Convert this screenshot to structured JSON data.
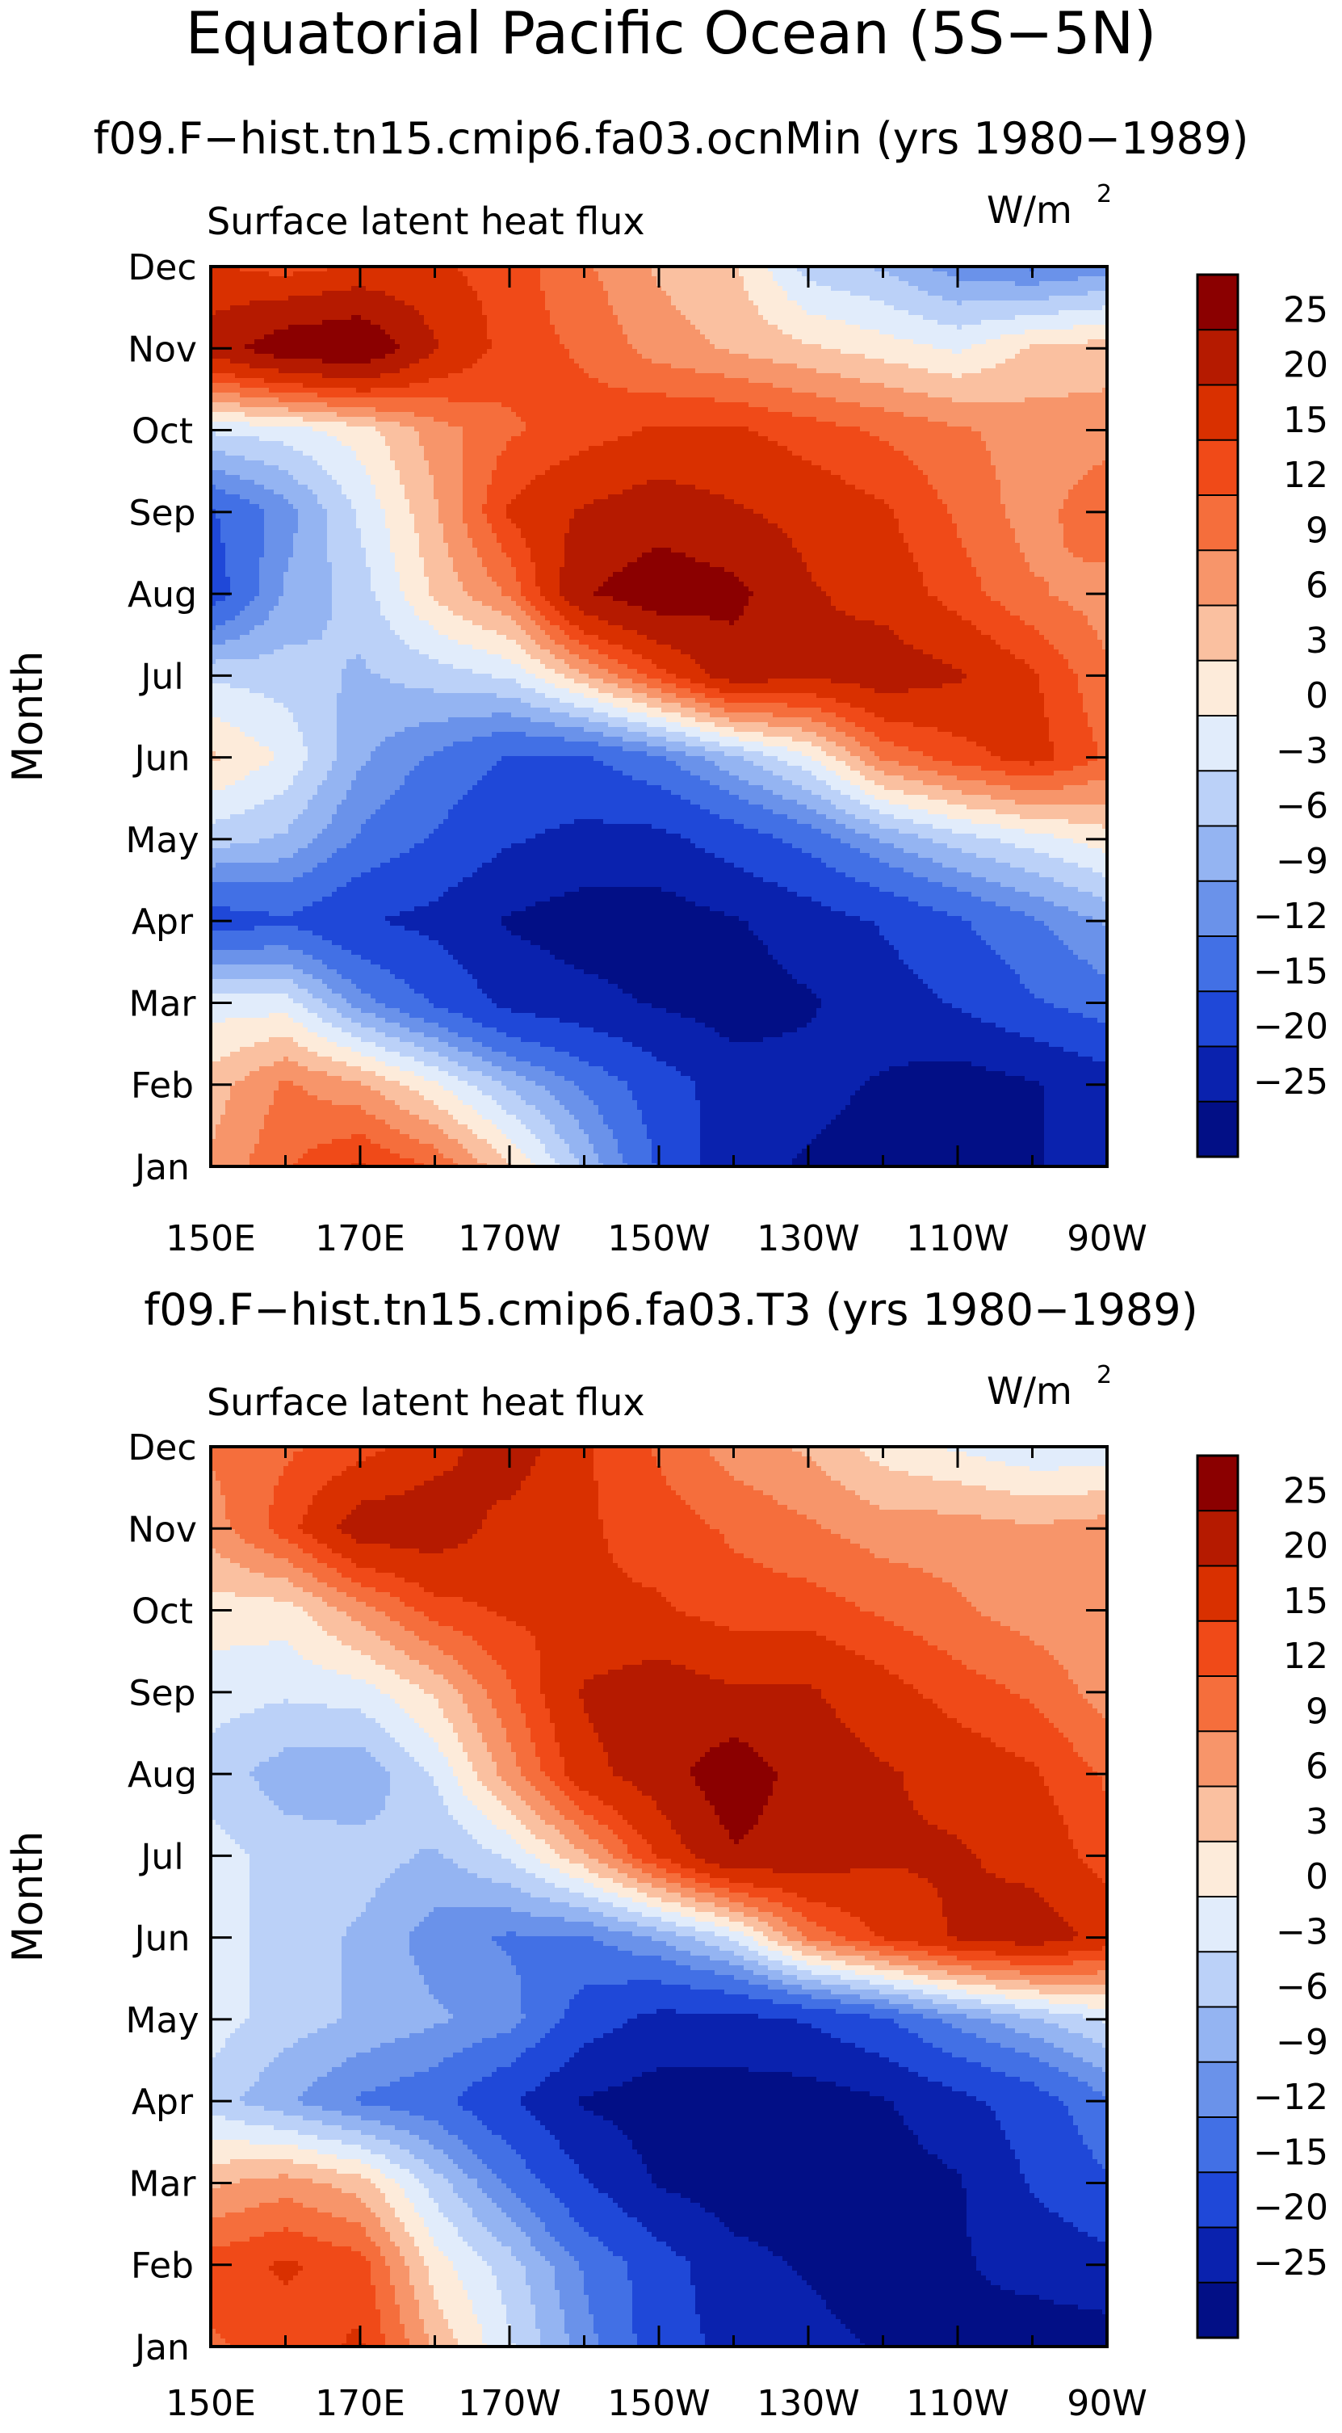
{
  "title": "Equatorial Pacific Ocean (5S−5N)",
  "panels": [
    {
      "subtitle": "f09.F−hist.tn15.cmip6.fa03.ocnMin (yrs 1980−1989)",
      "field_label": "Surface latent heat flux",
      "units": "W/m",
      "units_exponent": "2"
    },
    {
      "subtitle": "f09.F−hist.tn15.cmip6.fa03.T3 (yrs 1980−1989)",
      "field_label": "Surface latent heat flux",
      "units": "W/m",
      "units_exponent": "2"
    }
  ],
  "chart_data": [
    {
      "type": "heatmap",
      "ylabel": "Month",
      "x_ticks": [
        "150E",
        "170E",
        "170W",
        "150W",
        "130W",
        "110W",
        "90W"
      ],
      "x_range": [
        "150E",
        "90W"
      ],
      "y_ticks": [
        "Jan",
        "Feb",
        "Mar",
        "Apr",
        "May",
        "Jun",
        "Jul",
        "Aug",
        "Sep",
        "Oct",
        "Nov",
        "Dec"
      ],
      "colorbar_levels": [
        "25",
        "20",
        "15",
        "12",
        "9",
        "6",
        "3",
        "0",
        "−3",
        "−6",
        "−9",
        "−12",
        "−15",
        "−20",
        "−25"
      ],
      "colors": [
        "#8B0000",
        "#B51A00",
        "#D93000",
        "#F04A18",
        "#F56E3C",
        "#F7956A",
        "#FAC0A0",
        "#FDEBDA",
        "#E1ECFB",
        "#BBD1F8",
        "#94B4F2",
        "#6A92EA",
        "#4270E5",
        "#1F48D8",
        "#0A22AE",
        "#020F86"
      ],
      "months": [
        "Jan",
        "Feb",
        "Mar",
        "Apr",
        "May",
        "Jun",
        "Jul",
        "Aug",
        "Sep",
        "Oct",
        "Nov",
        "Dec"
      ],
      "lon": [
        150,
        160,
        170,
        180,
        190,
        200,
        210,
        220,
        230,
        240,
        250,
        260,
        270
      ],
      "values": [
        [
          5,
          10,
          14,
          10,
          2,
          -8,
          -18,
          -26,
          -28,
          -30,
          -30,
          -28,
          -25
        ],
        [
          3,
          8,
          5,
          -1,
          -8,
          -14,
          -20,
          -25,
          -26,
          -28,
          -30,
          -28,
          -25
        ],
        [
          -3,
          -3,
          -12,
          -18,
          -24,
          -26,
          -28,
          -30,
          -28,
          -25,
          -22,
          -18,
          -15
        ],
        [
          -20,
          -18,
          -22,
          -24,
          -28,
          -30,
          -30,
          -28,
          -25,
          -22,
          -18,
          -14,
          -10
        ],
        [
          -6,
          -8,
          -14,
          -18,
          -22,
          -24,
          -24,
          -20,
          -16,
          -10,
          -6,
          -3,
          0
        ],
        [
          2,
          -2,
          -10,
          -14,
          -18,
          -18,
          -14,
          -8,
          -2,
          8,
          12,
          15,
          10
        ],
        [
          -5,
          -6,
          -8,
          -6,
          -4,
          4,
          12,
          20,
          18,
          20,
          18,
          14,
          8
        ],
        [
          -20,
          -10,
          -6,
          2,
          8,
          22,
          26,
          24,
          18,
          16,
          12,
          8,
          6
        ],
        [
          -18,
          -12,
          -4,
          4,
          14,
          18,
          20,
          18,
          16,
          14,
          10,
          6,
          10
        ],
        [
          -4,
          -3,
          0,
          6,
          10,
          12,
          14,
          14,
          12,
          10,
          8,
          6,
          6
        ],
        [
          20,
          26,
          28,
          18,
          12,
          10,
          6,
          4,
          2,
          0,
          -2,
          2,
          3
        ],
        [
          14,
          12,
          14,
          14,
          12,
          8,
          4,
          2,
          -6,
          -8,
          -12,
          -14,
          -12
        ]
      ]
    },
    {
      "type": "heatmap",
      "ylabel": "Month",
      "x_ticks": [
        "150E",
        "170E",
        "170W",
        "150W",
        "130W",
        "110W",
        "90W"
      ],
      "x_range": [
        "150E",
        "90W"
      ],
      "y_ticks": [
        "Jan",
        "Feb",
        "Mar",
        "Apr",
        "May",
        "Jun",
        "Jul",
        "Aug",
        "Sep",
        "Oct",
        "Nov",
        "Dec"
      ],
      "colorbar_levels": [
        "25",
        "20",
        "15",
        "12",
        "9",
        "6",
        "3",
        "0",
        "−3",
        "−6",
        "−9",
        "−12",
        "−15",
        "−20",
        "−25"
      ],
      "colors": [
        "#8B0000",
        "#B51A00",
        "#D93000",
        "#F04A18",
        "#F56E3C",
        "#F7956A",
        "#FAC0A0",
        "#FDEBDA",
        "#E1ECFB",
        "#BBD1F8",
        "#94B4F2",
        "#6A92EA",
        "#4270E5",
        "#1F48D8",
        "#0A22AE",
        "#020F86"
      ],
      "months": [
        "Jan",
        "Feb",
        "Mar",
        "Apr",
        "May",
        "Jun",
        "Jul",
        "Aug",
        "Sep",
        "Oct",
        "Nov",
        "Dec"
      ],
      "lon": [
        150,
        160,
        170,
        180,
        190,
        200,
        210,
        220,
        230,
        240,
        250,
        260,
        270
      ],
      "values": [
        [
          10,
          12,
          14,
          4,
          -4,
          -12,
          -20,
          -24,
          -26,
          -28,
          -28,
          -30,
          -30
        ],
        [
          12,
          14,
          12,
          0,
          -6,
          -14,
          -20,
          -26,
          -28,
          -30,
          -28,
          -26,
          -24
        ],
        [
          4,
          6,
          3,
          -6,
          -14,
          -22,
          -28,
          -30,
          -30,
          -30,
          -28,
          -22,
          -18
        ],
        [
          -6,
          -10,
          -14,
          -16,
          -22,
          -28,
          -30,
          -30,
          -30,
          -28,
          -24,
          -20,
          -14
        ],
        [
          -3,
          -6,
          -8,
          -10,
          -12,
          -20,
          -24,
          -24,
          -22,
          -18,
          -12,
          -8,
          -4
        ],
        [
          -3,
          -6,
          -8,
          -12,
          -14,
          -14,
          -10,
          -4,
          8,
          14,
          18,
          20,
          16
        ],
        [
          -3,
          -6,
          -6,
          -8,
          -4,
          4,
          14,
          22,
          20,
          18,
          18,
          16,
          12
        ],
        [
          -6,
          -9,
          -10,
          -4,
          6,
          16,
          20,
          26,
          20,
          18,
          16,
          14,
          10
        ],
        [
          -3,
          -4,
          -3,
          2,
          10,
          18,
          20,
          18,
          18,
          15,
          12,
          10,
          6
        ],
        [
          0,
          0,
          6,
          12,
          14,
          14,
          14,
          12,
          12,
          10,
          8,
          6,
          5
        ],
        [
          6,
          12,
          20,
          20,
          16,
          14,
          12,
          10,
          8,
          6,
          6,
          5,
          6
        ],
        [
          8,
          10,
          12,
          16,
          20,
          14,
          10,
          6,
          4,
          0,
          -2,
          -4,
          -4
        ]
      ]
    }
  ]
}
